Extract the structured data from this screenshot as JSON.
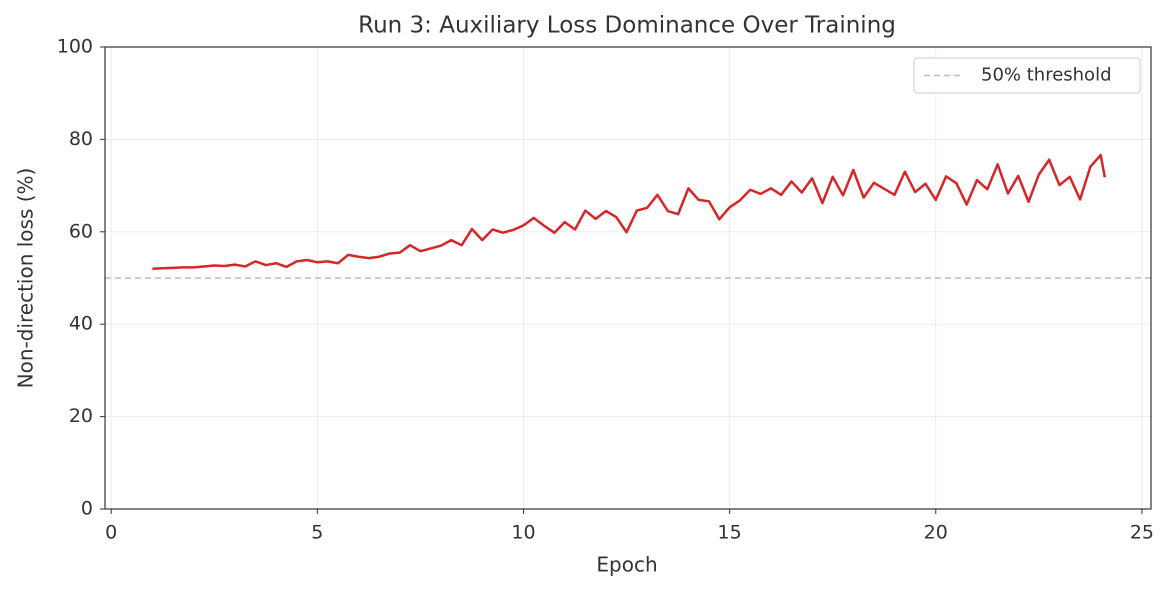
{
  "chart_data": {
    "type": "line",
    "title": "Run 3: Auxiliary Loss Dominance Over Training",
    "x_label": "Epoch",
    "y_label": "Non-direction loss (%)",
    "x": [
      1,
      1.25,
      1.5,
      1.75,
      2,
      2.25,
      2.5,
      2.75,
      3,
      3.25,
      3.5,
      3.75,
      4,
      4.25,
      4.5,
      4.75,
      5,
      5.25,
      5.5,
      5.75,
      6,
      6.25,
      6.5,
      6.75,
      7,
      7.25,
      7.5,
      7.75,
      8,
      8.25,
      8.5,
      8.75,
      9,
      9.25,
      9.5,
      9.75,
      10,
      10.25,
      10.5,
      10.75,
      11,
      11.25,
      11.5,
      11.75,
      12,
      12.25,
      12.5,
      12.75,
      13,
      13.25,
      13.5,
      13.75,
      14,
      14.25,
      14.5,
      14.75,
      15,
      15.25,
      15.5,
      15.75,
      16,
      16.25,
      16.5,
      16.75,
      17,
      17.25,
      17.5,
      17.75,
      18,
      18.25,
      18.5,
      18.75,
      19,
      19.25,
      19.5,
      19.75,
      20,
      20.25,
      20.5,
      20.75,
      21,
      21.25,
      21.5,
      21.75,
      22,
      22.25,
      22.5,
      22.75,
      23,
      23.25,
      23.5,
      23.75,
      24,
      24.1
    ],
    "series": [
      {
        "color": "#d62728",
        "values": [
          52.0,
          52.1,
          52.2,
          52.3,
          52.3,
          52.5,
          52.7,
          52.6,
          52.9,
          52.5,
          53.6,
          52.8,
          53.2,
          52.4,
          53.6,
          53.9,
          53.4,
          53.6,
          53.2,
          55.0,
          54.6,
          54.3,
          54.6,
          55.3,
          55.5,
          57.1,
          55.8,
          56.4,
          57.0,
          58.2,
          57.1,
          60.6,
          58.2,
          60.5,
          59.8,
          60.4,
          61.4,
          63.0,
          61.3,
          59.8,
          62.1,
          60.5,
          64.6,
          62.8,
          64.5,
          63.2,
          59.9,
          64.6,
          65.2,
          68.0,
          64.5,
          63.8,
          69.4,
          66.9,
          66.6,
          62.7,
          65.3,
          66.8,
          69.1,
          68.2,
          69.4,
          68.0,
          70.9,
          68.5,
          71.6,
          66.2,
          71.9,
          67.9,
          73.4,
          67.4,
          70.6,
          69.3,
          68.0,
          73.0,
          68.6,
          70.4,
          66.9,
          72.0,
          70.5,
          65.9,
          71.2,
          69.2,
          74.6,
          68.3,
          72.1,
          66.5,
          72.4,
          75.6,
          70.1,
          71.9,
          67.0,
          74.1,
          76.6,
          71.8
        ]
      }
    ],
    "threshold": {
      "value": 50,
      "label": "50% threshold",
      "color": "#bbbbbb"
    },
    "xlim": [
      -0.15,
      25.22
    ],
    "ylim": [
      0,
      100
    ],
    "xticks": [
      0,
      5,
      10,
      15,
      20,
      25
    ],
    "yticks": [
      0,
      20,
      40,
      60,
      80,
      100
    ],
    "grid": true,
    "legend": "upper right"
  }
}
